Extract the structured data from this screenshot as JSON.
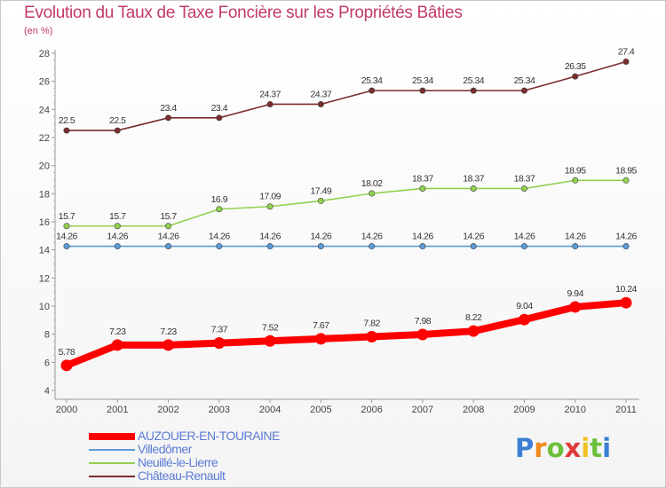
{
  "header": {
    "title": "Evolution du Taux de Taxe Foncière sur les Propriétés Bâties",
    "unit": "(en %)"
  },
  "colors": {
    "AUZOUER-EN-TOURAINE": "#ff0000",
    "Villedômer": "#5b9bd5",
    "Neuillé-le-Lierre": "#92d050",
    "Château-Renault": "#7b2c2c",
    "axis": "#999999",
    "label": "#333333"
  },
  "chart_data": {
    "type": "line",
    "title": "Evolution du Taux de Taxe Foncière sur les Propriétés Bâties",
    "ylabel": "(en %)",
    "xlabel": "",
    "categories": [
      "2000",
      "2001",
      "2002",
      "2003",
      "2004",
      "2005",
      "2006",
      "2007",
      "2008",
      "2009",
      "2010",
      "2011"
    ],
    "ylim": [
      4,
      28
    ],
    "yticks": [
      4,
      6,
      8,
      10,
      12,
      14,
      16,
      18,
      20,
      22,
      24,
      26,
      28
    ],
    "grid": false,
    "legend_position": "bottom-left",
    "series": [
      {
        "name": "Château-Renault",
        "values": [
          22.5,
          22.5,
          23.4,
          23.4,
          24.37,
          24.37,
          25.34,
          25.34,
          25.34,
          25.34,
          26.35,
          27.4
        ],
        "labels": [
          "22.5",
          "22.5",
          "23.4",
          "23.4",
          "24.37",
          "24.37",
          "25.34",
          "25.34",
          "25.34",
          "25.34",
          "26.35",
          "27.4"
        ]
      },
      {
        "name": "Neuillé-le-Lierre",
        "values": [
          15.7,
          15.7,
          15.7,
          16.9,
          17.09,
          17.49,
          18.02,
          18.37,
          18.37,
          18.37,
          18.95,
          18.95
        ],
        "labels": [
          "15.7",
          "15.7",
          "15.7",
          "16.9",
          "17.09",
          "17.49",
          "18.02",
          "18.37",
          "18.37",
          "18.37",
          "18.95",
          "18.95"
        ]
      },
      {
        "name": "Villedômer",
        "values": [
          14.26,
          14.26,
          14.26,
          14.26,
          14.26,
          14.26,
          14.26,
          14.26,
          14.26,
          14.26,
          14.26,
          14.26
        ],
        "labels": [
          "14.26",
          "14.26",
          "14.26",
          "14.26",
          "14.26",
          "14.26",
          "14.26",
          "14.26",
          "14.26",
          "14.26",
          "14.26",
          "14.26"
        ]
      },
      {
        "name": "AUZOUER-EN-TOURAINE",
        "values": [
          5.78,
          7.23,
          7.23,
          7.37,
          7.52,
          7.67,
          7.82,
          7.98,
          8.22,
          9.04,
          9.94,
          10.24
        ],
        "labels": [
          "5.78",
          "7.23",
          "7.23",
          "7.37",
          "7.52",
          "7.67",
          "7.82",
          "7.98",
          "8.22",
          "9.04",
          "9.94",
          "10.24"
        ]
      }
    ]
  },
  "legend": [
    {
      "name": "AUZOUER-EN-TOURAINE"
    },
    {
      "name": "Villedômer"
    },
    {
      "name": "Neuillé-le-Lierre"
    },
    {
      "name": "Château-Renault"
    }
  ],
  "brand": {
    "letters": [
      "P",
      "r",
      "o",
      "x",
      "i",
      "t",
      "i"
    ],
    "letter_colors": [
      "#3a7fd5",
      "#f08a1c",
      "#6cbf3a",
      "#e03a3a",
      "#f0c020",
      "#6cbf3a",
      "#3a7fd5"
    ]
  }
}
